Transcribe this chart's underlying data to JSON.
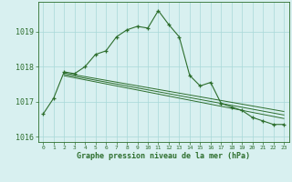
{
  "hours": [
    0,
    1,
    2,
    3,
    4,
    5,
    6,
    7,
    8,
    9,
    10,
    11,
    12,
    13,
    14,
    15,
    16,
    17,
    18,
    19,
    20,
    21,
    22,
    23
  ],
  "pressure_main": [
    1016.65,
    1017.1,
    1017.85,
    1017.8,
    1018.0,
    1018.35,
    1018.45,
    1018.85,
    1019.05,
    1019.15,
    1019.1,
    1019.6,
    1019.2,
    1018.85,
    1017.75,
    1017.45,
    1017.55,
    1016.95,
    1016.85,
    1016.75,
    1016.55,
    1016.45,
    1016.35,
    1016.35
  ],
  "trend_line1_x": [
    2,
    23
  ],
  "trend_line1_y": [
    1017.82,
    1016.72
  ],
  "trend_line2_x": [
    2,
    23
  ],
  "trend_line2_y": [
    1017.78,
    1016.62
  ],
  "trend_line3_x": [
    2,
    23
  ],
  "trend_line3_y": [
    1017.74,
    1016.52
  ],
  "line_color": "#2d6e2d",
  "bg_color": "#d8f0f0",
  "grid_color": "#a8d8d8",
  "xlabel": "Graphe pression niveau de la mer (hPa)",
  "ylim": [
    1015.85,
    1019.85
  ],
  "xlim": [
    -0.5,
    23.5
  ],
  "yticks": [
    1016,
    1017,
    1018,
    1019
  ],
  "xticks": [
    0,
    1,
    2,
    3,
    4,
    5,
    6,
    7,
    8,
    9,
    10,
    11,
    12,
    13,
    14,
    15,
    16,
    17,
    18,
    19,
    20,
    21,
    22,
    23
  ]
}
